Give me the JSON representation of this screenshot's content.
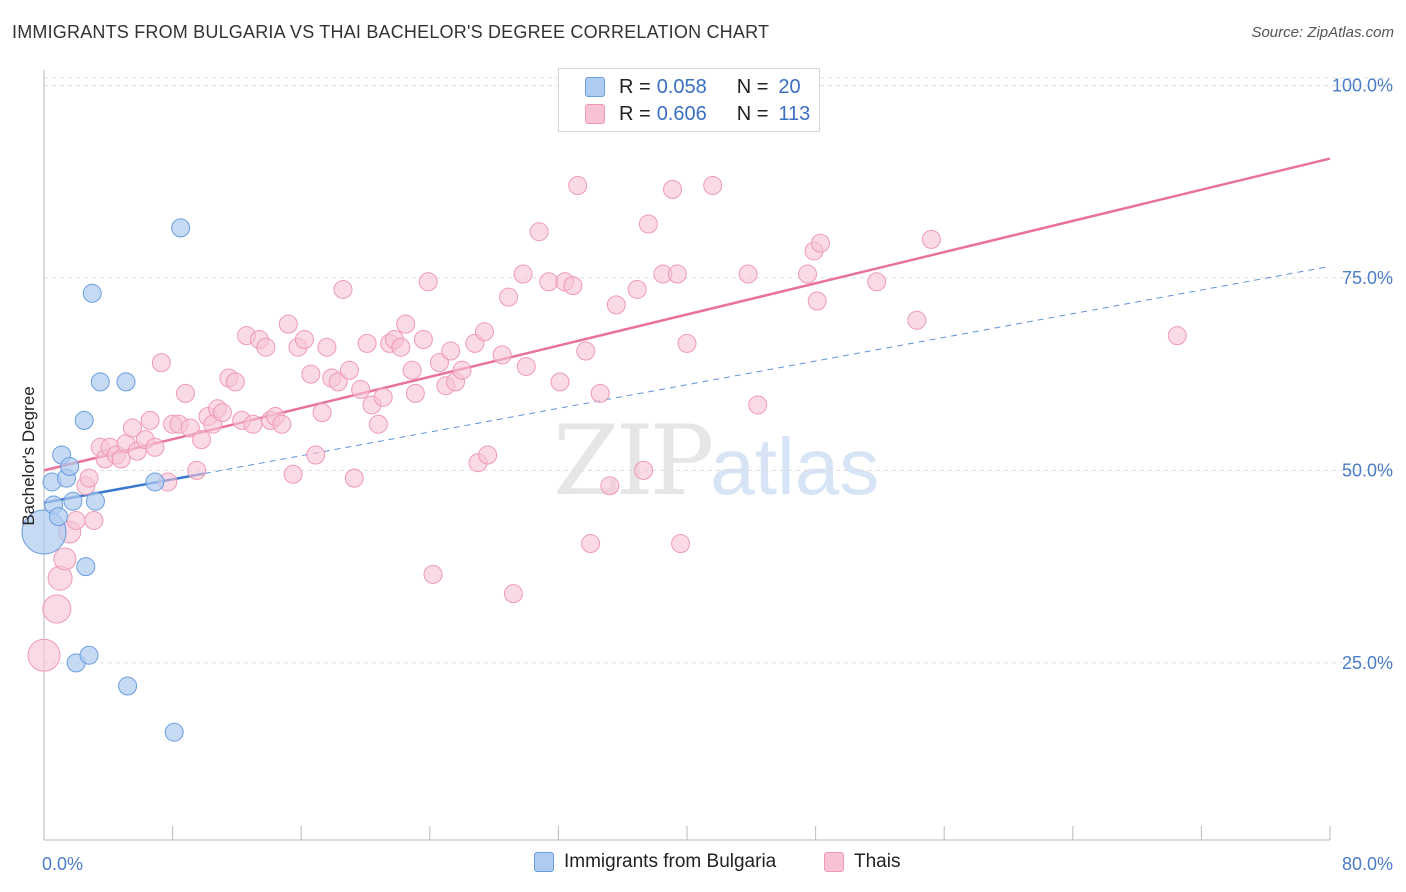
{
  "title": "IMMIGRANTS FROM BULGARIA VS THAI BACHELOR'S DEGREE CORRELATION CHART",
  "source": "Source: ZipAtlas.com",
  "watermark": {
    "zip": "ZIP",
    "atlas": "atlas"
  },
  "legend": {
    "rows": [
      {
        "r_label": "R =",
        "r_value": "0.058",
        "n_label": "N =",
        "n_value": "20"
      },
      {
        "r_label": "R =",
        "r_value": "0.606",
        "n_label": "N =",
        "n_value": "113"
      }
    ]
  },
  "bottom_legend": {
    "series1": "Immigrants from Bulgaria",
    "series2": "Thais"
  },
  "colors": {
    "bulgaria_fill": "#aecbf0",
    "bulgaria_stroke": "#6a9ee0",
    "bulgaria_line": "#3a78d0",
    "thai_fill": "#f7c3d3",
    "thai_stroke": "#ef9ab4",
    "thai_line": "#e8729a",
    "grid": "#dddddd",
    "tick_label": "#4a7cc7"
  },
  "chart_data": {
    "type": "scatter",
    "title": "IMMIGRANTS FROM BULGARIA VS THAI BACHELOR'S DEGREE CORRELATION CHART",
    "xlabel": "",
    "ylabel": "Bachelor's Degree",
    "xlim": [
      0,
      80
    ],
    "ylim": [
      2,
      102
    ],
    "x_tick_labels": [
      "0.0%",
      "80.0%"
    ],
    "y_ticks": [
      25,
      50,
      75,
      100
    ],
    "y_tick_labels": [
      "25.0%",
      "50.0%",
      "75.0%",
      "100.0%"
    ],
    "grid": true,
    "legend_position": "top-center",
    "series": [
      {
        "name": "Immigrants from Bulgaria",
        "trend": {
          "x": [
            0,
            10
          ],
          "y": [
            45.8,
            49.6
          ]
        },
        "trend_extended": {
          "x": [
            10,
            80
          ],
          "y": [
            49.6,
            76.5
          ]
        },
        "points": [
          {
            "x": 0.0,
            "y": 42.0,
            "s": 22
          },
          {
            "x": 0.5,
            "y": 48.5,
            "s": 9
          },
          {
            "x": 0.6,
            "y": 45.5,
            "s": 9
          },
          {
            "x": 0.9,
            "y": 44.0,
            "s": 9
          },
          {
            "x": 1.1,
            "y": 52.0,
            "s": 9
          },
          {
            "x": 1.4,
            "y": 49.0,
            "s": 9
          },
          {
            "x": 1.6,
            "y": 50.5,
            "s": 9
          },
          {
            "x": 1.8,
            "y": 46.0,
            "s": 9
          },
          {
            "x": 2.0,
            "y": 25.0,
            "s": 9
          },
          {
            "x": 2.5,
            "y": 56.5,
            "s": 9
          },
          {
            "x": 2.6,
            "y": 37.5,
            "s": 9
          },
          {
            "x": 2.8,
            "y": 26.0,
            "s": 9
          },
          {
            "x": 3.0,
            "y": 73.0,
            "s": 9
          },
          {
            "x": 3.2,
            "y": 46.0,
            "s": 9
          },
          {
            "x": 3.5,
            "y": 61.5,
            "s": 9
          },
          {
            "x": 5.2,
            "y": 22.0,
            "s": 9
          },
          {
            "x": 5.1,
            "y": 61.5,
            "s": 9
          },
          {
            "x": 6.9,
            "y": 48.5,
            "s": 9
          },
          {
            "x": 8.1,
            "y": 16.0,
            "s": 9
          },
          {
            "x": 8.5,
            "y": 81.5,
            "s": 9
          }
        ]
      },
      {
        "name": "Thais",
        "trend": {
          "x": [
            0,
            80
          ],
          "y": [
            50.0,
            90.5
          ]
        },
        "points": [
          {
            "x": 0.0,
            "y": 26.0,
            "s": 16
          },
          {
            "x": 0.8,
            "y": 32.0,
            "s": 14
          },
          {
            "x": 1.0,
            "y": 36.0,
            "s": 12
          },
          {
            "x": 1.3,
            "y": 38.5,
            "s": 11
          },
          {
            "x": 1.6,
            "y": 42.0,
            "s": 11
          },
          {
            "x": 2.0,
            "y": 43.5,
            "s": 9
          },
          {
            "x": 2.6,
            "y": 48.0,
            "s": 9
          },
          {
            "x": 2.8,
            "y": 49.0,
            "s": 9
          },
          {
            "x": 3.1,
            "y": 43.5,
            "s": 9
          },
          {
            "x": 3.5,
            "y": 53.0,
            "s": 9
          },
          {
            "x": 3.8,
            "y": 51.5,
            "s": 9
          },
          {
            "x": 4.1,
            "y": 53.0,
            "s": 9
          },
          {
            "x": 4.5,
            "y": 52.0,
            "s": 9
          },
          {
            "x": 4.8,
            "y": 51.5,
            "s": 9
          },
          {
            "x": 5.1,
            "y": 53.5,
            "s": 9
          },
          {
            "x": 5.5,
            "y": 55.5,
            "s": 9
          },
          {
            "x": 5.8,
            "y": 52.5,
            "s": 9
          },
          {
            "x": 6.3,
            "y": 54.0,
            "s": 9
          },
          {
            "x": 6.6,
            "y": 56.5,
            "s": 9
          },
          {
            "x": 6.9,
            "y": 53.0,
            "s": 9
          },
          {
            "x": 7.3,
            "y": 64.0,
            "s": 9
          },
          {
            "x": 7.7,
            "y": 48.5,
            "s": 9
          },
          {
            "x": 8.0,
            "y": 56.0,
            "s": 9
          },
          {
            "x": 8.4,
            "y": 56.0,
            "s": 9
          },
          {
            "x": 8.8,
            "y": 60.0,
            "s": 9
          },
          {
            "x": 9.1,
            "y": 55.5,
            "s": 9
          },
          {
            "x": 9.5,
            "y": 50.0,
            "s": 9
          },
          {
            "x": 9.8,
            "y": 54.0,
            "s": 9
          },
          {
            "x": 10.2,
            "y": 57.0,
            "s": 9
          },
          {
            "x": 10.5,
            "y": 56.0,
            "s": 9
          },
          {
            "x": 10.8,
            "y": 58.0,
            "s": 9
          },
          {
            "x": 11.1,
            "y": 57.5,
            "s": 9
          },
          {
            "x": 11.5,
            "y": 62.0,
            "s": 9
          },
          {
            "x": 11.9,
            "y": 61.5,
            "s": 9
          },
          {
            "x": 12.3,
            "y": 56.5,
            "s": 9
          },
          {
            "x": 12.6,
            "y": 67.5,
            "s": 9
          },
          {
            "x": 13.0,
            "y": 56.0,
            "s": 9
          },
          {
            "x": 13.4,
            "y": 67.0,
            "s": 9
          },
          {
            "x": 13.8,
            "y": 66.0,
            "s": 9
          },
          {
            "x": 14.1,
            "y": 56.5,
            "s": 9
          },
          {
            "x": 14.4,
            "y": 57.0,
            "s": 9
          },
          {
            "x": 14.8,
            "y": 56.0,
            "s": 9
          },
          {
            "x": 15.2,
            "y": 69.0,
            "s": 9
          },
          {
            "x": 15.5,
            "y": 49.5,
            "s": 9
          },
          {
            "x": 15.8,
            "y": 66.0,
            "s": 9
          },
          {
            "x": 16.2,
            "y": 67.0,
            "s": 9
          },
          {
            "x": 16.6,
            "y": 62.5,
            "s": 9
          },
          {
            "x": 16.9,
            "y": 52.0,
            "s": 9
          },
          {
            "x": 17.3,
            "y": 57.5,
            "s": 9
          },
          {
            "x": 17.6,
            "y": 66.0,
            "s": 9
          },
          {
            "x": 17.9,
            "y": 62.0,
            "s": 9
          },
          {
            "x": 18.3,
            "y": 61.5,
            "s": 9
          },
          {
            "x": 18.6,
            "y": 73.5,
            "s": 9
          },
          {
            "x": 19.0,
            "y": 63.0,
            "s": 9
          },
          {
            "x": 19.3,
            "y": 49.0,
            "s": 9
          },
          {
            "x": 19.7,
            "y": 60.5,
            "s": 9
          },
          {
            "x": 20.1,
            "y": 66.5,
            "s": 9
          },
          {
            "x": 20.4,
            "y": 58.5,
            "s": 9
          },
          {
            "x": 20.8,
            "y": 56.0,
            "s": 9
          },
          {
            "x": 21.1,
            "y": 59.5,
            "s": 9
          },
          {
            "x": 21.5,
            "y": 66.5,
            "s": 9
          },
          {
            "x": 21.8,
            "y": 67.0,
            "s": 9
          },
          {
            "x": 22.2,
            "y": 66.0,
            "s": 9
          },
          {
            "x": 22.5,
            "y": 69.0,
            "s": 9
          },
          {
            "x": 22.9,
            "y": 63.0,
            "s": 9
          },
          {
            "x": 23.1,
            "y": 60.0,
            "s": 9
          },
          {
            "x": 23.6,
            "y": 67.0,
            "s": 9
          },
          {
            "x": 23.9,
            "y": 74.5,
            "s": 9
          },
          {
            "x": 24.2,
            "y": 36.5,
            "s": 9
          },
          {
            "x": 24.6,
            "y": 64.0,
            "s": 9
          },
          {
            "x": 25.0,
            "y": 61.0,
            "s": 9
          },
          {
            "x": 25.3,
            "y": 65.5,
            "s": 9
          },
          {
            "x": 25.6,
            "y": 61.5,
            "s": 9
          },
          {
            "x": 26.0,
            "y": 63.0,
            "s": 9
          },
          {
            "x": 26.8,
            "y": 66.5,
            "s": 9
          },
          {
            "x": 27.0,
            "y": 51.0,
            "s": 9
          },
          {
            "x": 27.4,
            "y": 68.0,
            "s": 9
          },
          {
            "x": 27.6,
            "y": 52.0,
            "s": 9
          },
          {
            "x": 28.5,
            "y": 65.0,
            "s": 9
          },
          {
            "x": 28.9,
            "y": 72.5,
            "s": 9
          },
          {
            "x": 29.2,
            "y": 34.0,
            "s": 9
          },
          {
            "x": 29.8,
            "y": 75.5,
            "s": 9
          },
          {
            "x": 30.0,
            "y": 63.5,
            "s": 9
          },
          {
            "x": 30.8,
            "y": 81.0,
            "s": 9
          },
          {
            "x": 31.4,
            "y": 74.5,
            "s": 9
          },
          {
            "x": 32.1,
            "y": 61.5,
            "s": 9
          },
          {
            "x": 32.4,
            "y": 74.5,
            "s": 9
          },
          {
            "x": 32.9,
            "y": 74.0,
            "s": 9
          },
          {
            "x": 33.2,
            "y": 87.0,
            "s": 9
          },
          {
            "x": 33.7,
            "y": 65.5,
            "s": 9
          },
          {
            "x": 34.0,
            "y": 40.5,
            "s": 9
          },
          {
            "x": 34.6,
            "y": 60.0,
            "s": 9
          },
          {
            "x": 35.2,
            "y": 48.0,
            "s": 9
          },
          {
            "x": 35.6,
            "y": 71.5,
            "s": 9
          },
          {
            "x": 36.9,
            "y": 73.5,
            "s": 9
          },
          {
            "x": 37.3,
            "y": 50.0,
            "s": 9
          },
          {
            "x": 37.6,
            "y": 82.0,
            "s": 9
          },
          {
            "x": 38.5,
            "y": 75.5,
            "s": 9
          },
          {
            "x": 39.1,
            "y": 86.5,
            "s": 9
          },
          {
            "x": 39.4,
            "y": 75.5,
            "s": 9
          },
          {
            "x": 39.6,
            "y": 40.5,
            "s": 9
          },
          {
            "x": 40.0,
            "y": 66.5,
            "s": 9
          },
          {
            "x": 41.6,
            "y": 87.0,
            "s": 9
          },
          {
            "x": 43.8,
            "y": 75.5,
            "s": 9
          },
          {
            "x": 44.4,
            "y": 58.5,
            "s": 9
          },
          {
            "x": 47.5,
            "y": 75.5,
            "s": 9
          },
          {
            "x": 47.9,
            "y": 78.5,
            "s": 9
          },
          {
            "x": 48.3,
            "y": 79.5,
            "s": 9
          },
          {
            "x": 48.1,
            "y": 72.0,
            "s": 9
          },
          {
            "x": 51.8,
            "y": 74.5,
            "s": 9
          },
          {
            "x": 54.3,
            "y": 69.5,
            "s": 9
          },
          {
            "x": 55.2,
            "y": 80.0,
            "s": 9
          },
          {
            "x": 70.5,
            "y": 67.5,
            "s": 9
          }
        ]
      }
    ]
  }
}
